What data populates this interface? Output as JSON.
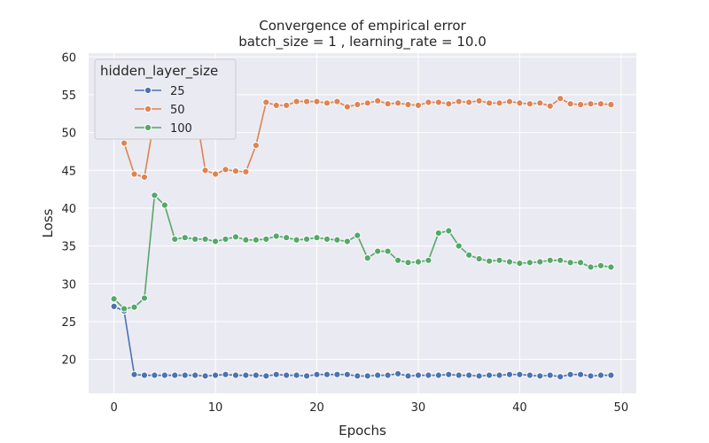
{
  "chart_data": {
    "type": "line",
    "title": "Convergence of empirical error",
    "subtitle": "batch_size = 1 , learning_rate = 10.0",
    "xlabel": "Epochs",
    "ylabel": "Loss",
    "xlim": [
      -2.5,
      51.5
    ],
    "ylim": [
      15.5,
      60.5
    ],
    "xticks": [
      0,
      10,
      20,
      30,
      40,
      50
    ],
    "yticks": [
      20,
      25,
      30,
      35,
      40,
      45,
      50,
      55,
      60
    ],
    "grid": true,
    "legend": {
      "title": "hidden_layer_size",
      "placement": "top-left"
    },
    "colors": {
      "background": "#eaeaf2",
      "grid": "#ffffff"
    },
    "x": [
      0,
      1,
      2,
      3,
      4,
      5,
      6,
      7,
      8,
      9,
      10,
      11,
      12,
      13,
      14,
      15,
      16,
      17,
      18,
      19,
      20,
      21,
      22,
      23,
      24,
      25,
      26,
      27,
      28,
      29,
      30,
      31,
      32,
      33,
      34,
      35,
      36,
      37,
      38,
      39,
      40,
      41,
      42,
      43,
      44,
      45,
      46,
      47,
      48,
      49
    ],
    "series": [
      {
        "name": "25",
        "color": "#4c72b0",
        "values": [
          27.0,
          26.4,
          18.0,
          17.9,
          17.9,
          17.9,
          17.9,
          17.9,
          17.9,
          17.8,
          17.9,
          18.0,
          17.9,
          17.9,
          17.9,
          17.8,
          18.0,
          17.9,
          17.9,
          17.8,
          18.0,
          18.0,
          18.0,
          18.0,
          17.8,
          17.8,
          17.9,
          17.9,
          18.1,
          17.8,
          17.9,
          17.9,
          17.9,
          18.0,
          17.9,
          17.9,
          17.8,
          17.9,
          17.9,
          18.0,
          18.0,
          17.9,
          17.8,
          17.9,
          17.7,
          18.0,
          18.0,
          17.8,
          17.9,
          17.9
        ]
      },
      {
        "name": "50",
        "color": "#dd8452",
        "values": [
          53.1,
          48.6,
          44.5,
          44.1,
          52.0,
          57.8,
          54.8,
          54.4,
          53.4,
          45.0,
          44.5,
          45.1,
          44.9,
          44.8,
          48.3,
          54.0,
          53.6,
          53.6,
          54.1,
          54.1,
          54.1,
          53.9,
          54.1,
          53.4,
          53.7,
          53.9,
          54.2,
          53.8,
          53.9,
          53.7,
          53.6,
          54.0,
          54.0,
          53.8,
          54.1,
          54.0,
          54.2,
          53.9,
          53.9,
          54.1,
          53.9,
          53.8,
          53.9,
          53.5,
          54.5,
          53.8,
          53.7,
          53.8,
          53.8,
          53.7
        ]
      },
      {
        "name": "100",
        "color": "#55a868",
        "values": [
          28.0,
          26.7,
          26.9,
          28.1,
          41.7,
          40.4,
          35.9,
          36.1,
          35.9,
          35.9,
          35.6,
          35.9,
          36.2,
          35.8,
          35.8,
          35.9,
          36.3,
          36.1,
          35.8,
          35.9,
          36.1,
          35.9,
          35.8,
          35.6,
          36.4,
          33.4,
          34.3,
          34.3,
          33.1,
          32.8,
          32.9,
          33.1,
          36.7,
          37.0,
          35.0,
          33.8,
          33.3,
          33.0,
          33.1,
          32.9,
          32.7,
          32.8,
          32.9,
          33.1,
          33.1,
          32.8,
          32.8,
          32.2,
          32.4,
          32.2
        ]
      }
    ]
  }
}
